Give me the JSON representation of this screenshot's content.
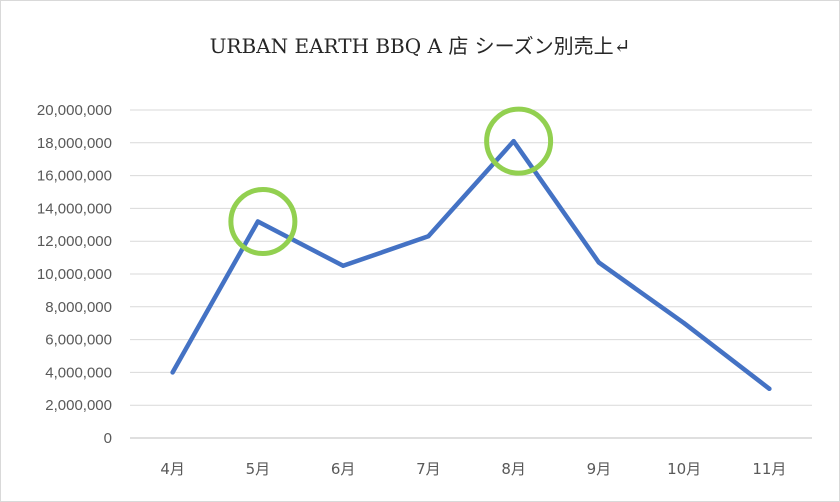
{
  "chart_data": {
    "type": "line",
    "title": "URBAN EARTH BBQ A 店  シーズン別売上↵",
    "xlabel": "",
    "ylabel": "",
    "categories": [
      "4月",
      "5月",
      "6月",
      "7月",
      "8月",
      "9月",
      "10月",
      "11月"
    ],
    "series": [
      {
        "values": [
          4000000,
          13200000,
          10500000,
          12300000,
          18100000,
          10700000,
          7000000,
          3000000
        ],
        "color": "#4472c4"
      }
    ],
    "ylim": [
      0,
      20000000
    ],
    "yticks": [
      "0",
      "2,000,000",
      "4,000,000",
      "6,000,000",
      "8,000,000",
      "10,000,000",
      "12,000,000",
      "14,000,000",
      "16,000,000",
      "18,000,000",
      "20,000,000"
    ],
    "grid": true,
    "legend": "none",
    "highlights": [
      {
        "category": "5月",
        "color": "#92d050"
      },
      {
        "category": "8月",
        "color": "#92d050"
      }
    ]
  }
}
